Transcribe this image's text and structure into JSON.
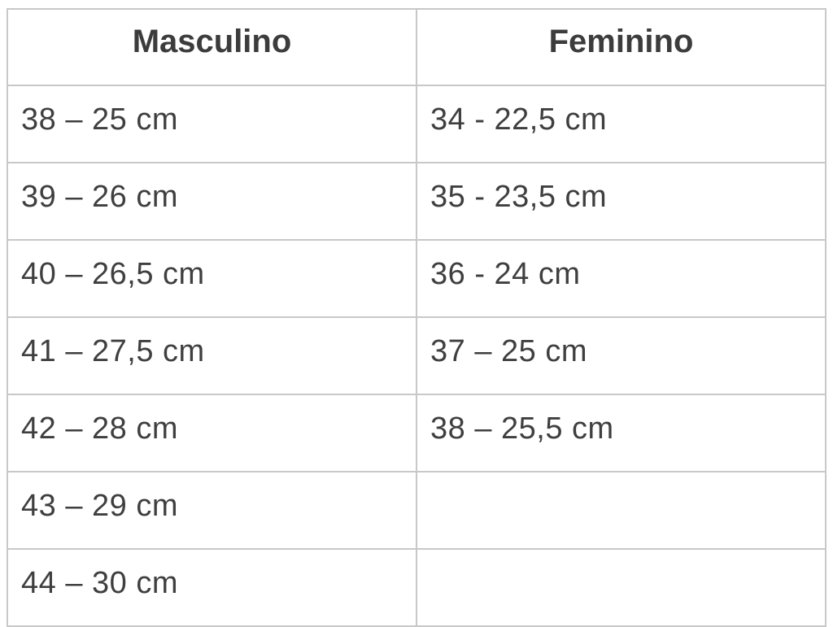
{
  "table": {
    "columns": [
      {
        "header": "Masculino",
        "rows": [
          "38 – 25 cm",
          "39 – 26 cm",
          "40 – 26,5 cm",
          "41 – 27,5 cm",
          "42 – 28 cm",
          "43 – 29 cm",
          "44 – 30 cm"
        ]
      },
      {
        "header": "Feminino",
        "rows": [
          "34 - 22,5 cm",
          "35 - 23,5 cm",
          "36 - 24 cm",
          "37 – 25 cm",
          "38 – 25,5 cm",
          "",
          ""
        ]
      }
    ]
  },
  "chart_data": {
    "type": "table",
    "title": "",
    "columns": [
      "Masculino",
      "Feminino"
    ],
    "rows": [
      [
        "38 – 25 cm",
        "34 - 22,5 cm"
      ],
      [
        "39 – 26 cm",
        "35 - 23,5 cm"
      ],
      [
        "40 – 26,5 cm",
        "36 - 24 cm"
      ],
      [
        "41 – 27,5 cm",
        "37 – 25 cm"
      ],
      [
        "42 – 28 cm",
        "38 – 25,5 cm"
      ],
      [
        "43 – 29 cm",
        ""
      ],
      [
        "44 – 30 cm",
        ""
      ]
    ]
  },
  "colors": {
    "text": "#3f3f3f",
    "border": "#c8c8c8",
    "background": "#ffffff"
  }
}
